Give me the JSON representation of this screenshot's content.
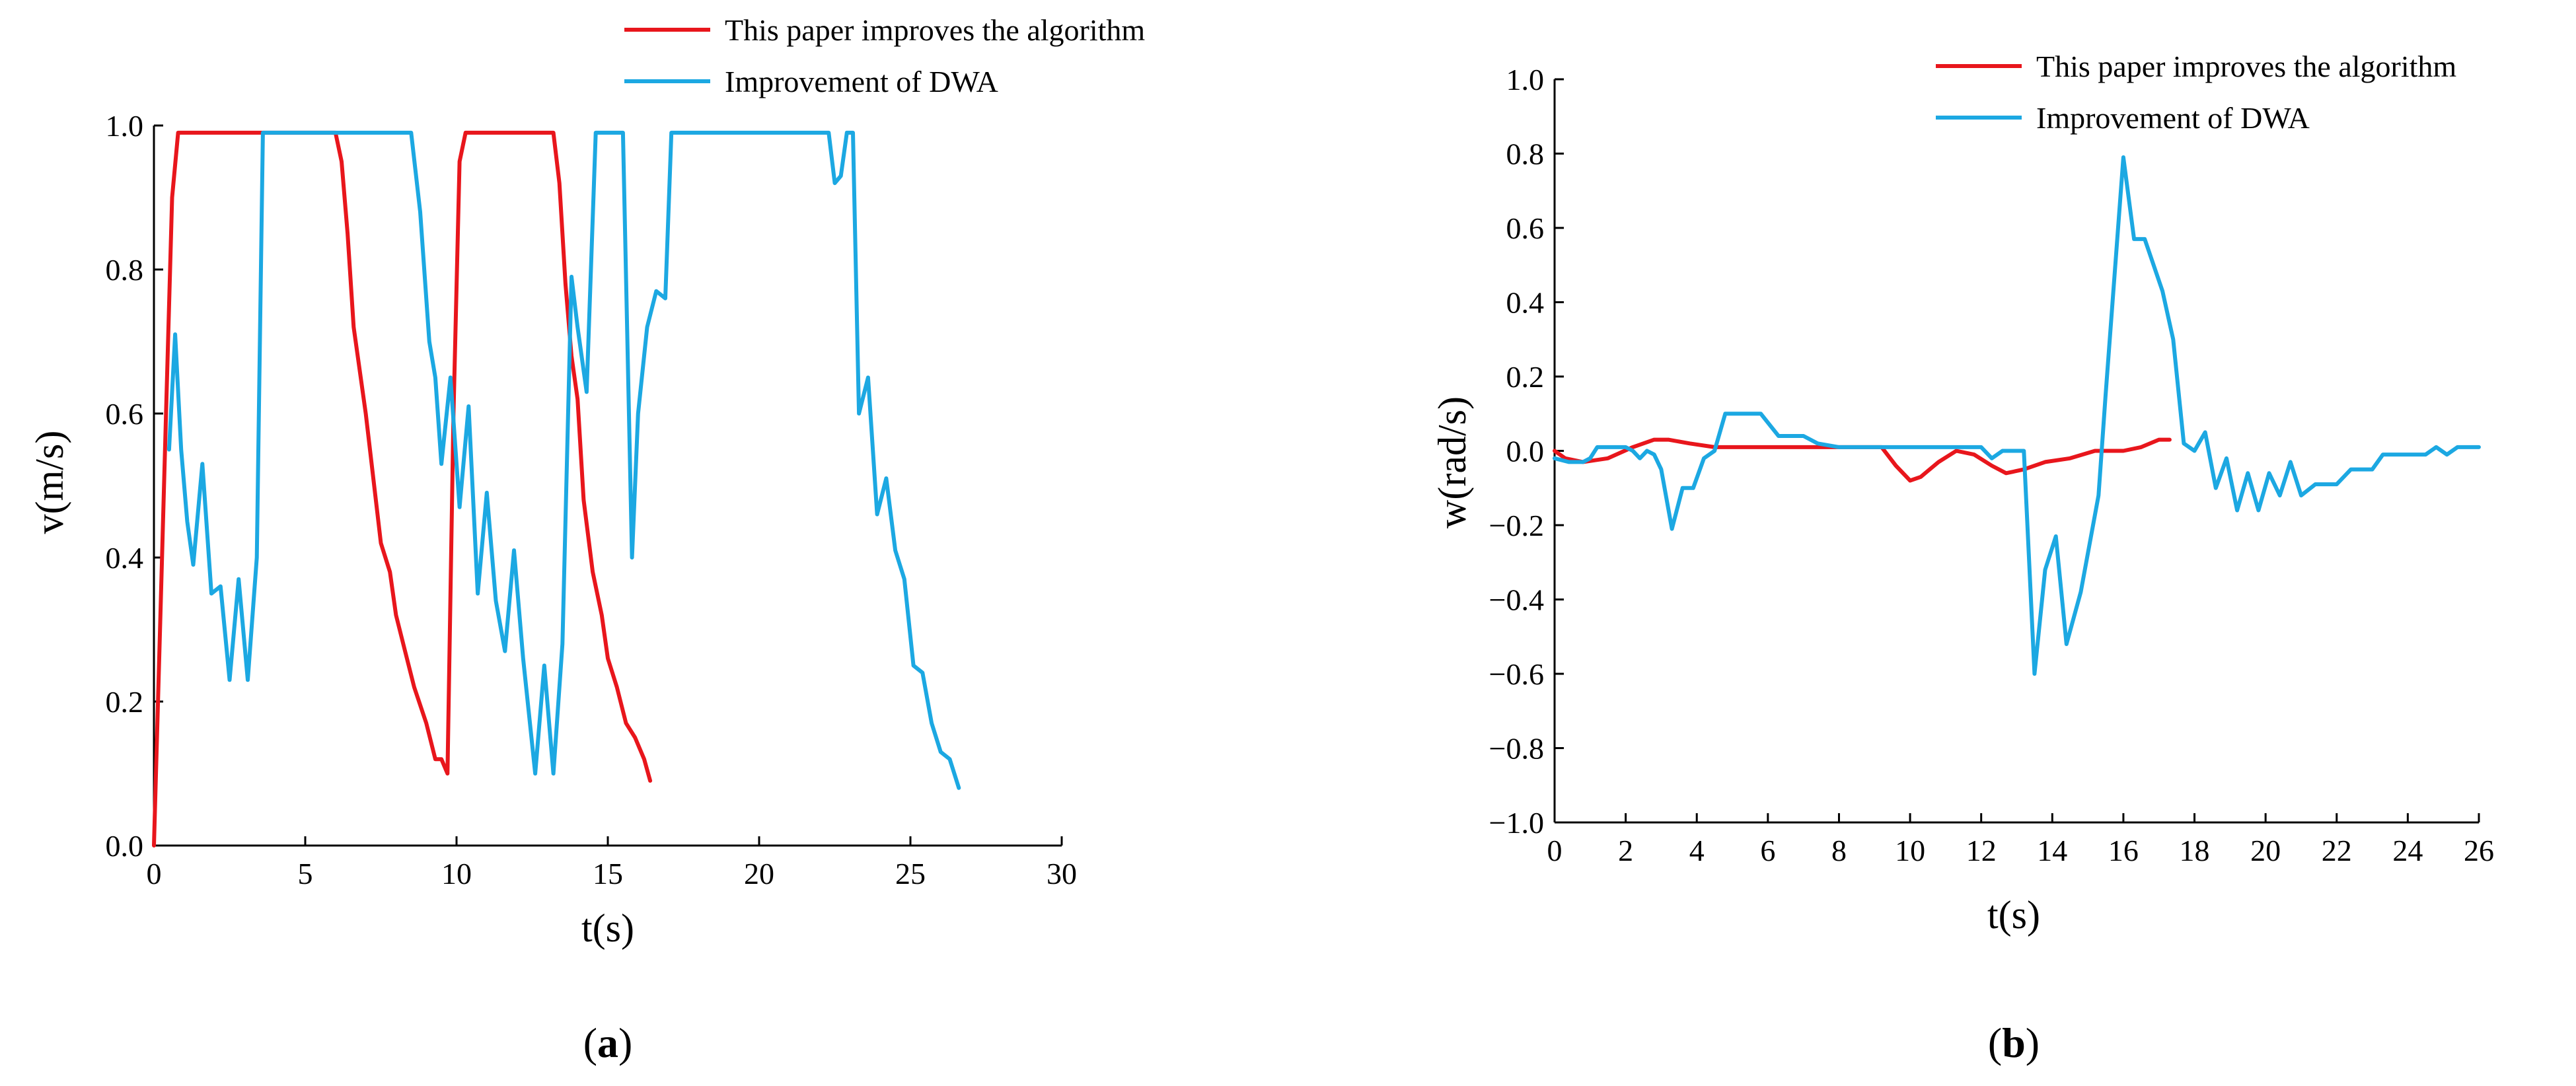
{
  "colors": {
    "algorithm": "#e8161c",
    "dwa": "#1ca8e2",
    "axis": "#000000"
  },
  "chart_data": [
    {
      "type": "line",
      "caption_pre": "(",
      "caption_bold": "a",
      "caption_post": ")",
      "title": "",
      "xlabel": "t(s)",
      "ylabel": "v(m/s)",
      "xlim": [
        0,
        30
      ],
      "ylim": [
        0.0,
        1.0
      ],
      "xticks": [
        0,
        5,
        10,
        15,
        20,
        25,
        30
      ],
      "yticks": [
        0.0,
        0.2,
        0.4,
        0.6,
        0.8,
        1.0
      ],
      "ytick_decimals": 1,
      "grid": false,
      "legend": "top-right",
      "series": [
        {
          "name": "This paper improves the algorithm",
          "color_key": "algorithm",
          "points": [
            [
              0,
              0
            ],
            [
              0.2,
              0.3
            ],
            [
              0.4,
              0.6
            ],
            [
              0.6,
              0.9
            ],
            [
              0.8,
              0.99
            ],
            [
              6.0,
              0.99
            ],
            [
              6.2,
              0.95
            ],
            [
              6.4,
              0.85
            ],
            [
              6.6,
              0.72
            ],
            [
              7.0,
              0.6
            ],
            [
              7.5,
              0.42
            ],
            [
              7.8,
              0.38
            ],
            [
              8.0,
              0.32
            ],
            [
              8.3,
              0.27
            ],
            [
              8.6,
              0.22
            ],
            [
              9.0,
              0.17
            ],
            [
              9.3,
              0.12
            ],
            [
              9.5,
              0.12
            ],
            [
              9.7,
              0.1
            ],
            [
              9.9,
              0.6
            ],
            [
              10.1,
              0.95
            ],
            [
              10.3,
              0.99
            ],
            [
              13.2,
              0.99
            ],
            [
              13.4,
              0.92
            ],
            [
              13.6,
              0.78
            ],
            [
              13.8,
              0.68
            ],
            [
              14.0,
              0.62
            ],
            [
              14.2,
              0.48
            ],
            [
              14.5,
              0.38
            ],
            [
              14.8,
              0.32
            ],
            [
              15.0,
              0.26
            ],
            [
              15.3,
              0.22
            ],
            [
              15.6,
              0.17
            ],
            [
              15.9,
              0.15
            ],
            [
              16.2,
              0.12
            ],
            [
              16.4,
              0.09
            ]
          ]
        },
        {
          "name": "Improvement of DWA",
          "color_key": "dwa",
          "points": [
            [
              0.5,
              0.55
            ],
            [
              0.7,
              0.71
            ],
            [
              0.9,
              0.55
            ],
            [
              1.1,
              0.45
            ],
            [
              1.3,
              0.39
            ],
            [
              1.6,
              0.53
            ],
            [
              1.9,
              0.35
            ],
            [
              2.2,
              0.36
            ],
            [
              2.5,
              0.23
            ],
            [
              2.8,
              0.37
            ],
            [
              3.1,
              0.23
            ],
            [
              3.4,
              0.4
            ],
            [
              3.6,
              0.99
            ],
            [
              8.5,
              0.99
            ],
            [
              8.8,
              0.88
            ],
            [
              9.1,
              0.7
            ],
            [
              9.3,
              0.65
            ],
            [
              9.5,
              0.53
            ],
            [
              9.8,
              0.65
            ],
            [
              10.1,
              0.47
            ],
            [
              10.4,
              0.61
            ],
            [
              10.7,
              0.35
            ],
            [
              11.0,
              0.49
            ],
            [
              11.3,
              0.34
            ],
            [
              11.6,
              0.27
            ],
            [
              11.9,
              0.41
            ],
            [
              12.2,
              0.26
            ],
            [
              12.6,
              0.1
            ],
            [
              12.9,
              0.25
            ],
            [
              13.2,
              0.1
            ],
            [
              13.5,
              0.28
            ],
            [
              13.8,
              0.79
            ],
            [
              14.0,
              0.72
            ],
            [
              14.3,
              0.63
            ],
            [
              14.6,
              0.99
            ],
            [
              15.5,
              0.99
            ],
            [
              15.8,
              0.4
            ],
            [
              16.0,
              0.6
            ],
            [
              16.3,
              0.72
            ],
            [
              16.6,
              0.77
            ],
            [
              16.9,
              0.76
            ],
            [
              17.1,
              0.99
            ],
            [
              22.3,
              0.99
            ],
            [
              22.5,
              0.92
            ],
            [
              22.7,
              0.93
            ],
            [
              22.9,
              0.99
            ],
            [
              23.1,
              0.99
            ],
            [
              23.3,
              0.6
            ],
            [
              23.6,
              0.65
            ],
            [
              23.9,
              0.46
            ],
            [
              24.2,
              0.51
            ],
            [
              24.5,
              0.41
            ],
            [
              24.8,
              0.37
            ],
            [
              25.1,
              0.25
            ],
            [
              25.4,
              0.24
            ],
            [
              25.7,
              0.17
            ],
            [
              26.0,
              0.13
            ],
            [
              26.3,
              0.12
            ],
            [
              26.6,
              0.08
            ]
          ]
        }
      ]
    },
    {
      "type": "line",
      "caption_pre": "(",
      "caption_bold": "b",
      "caption_post": ")",
      "title": "",
      "xlabel": "t(s)",
      "ylabel": "w(rad/s)",
      "xlim": [
        0,
        26
      ],
      "ylim": [
        -1.0,
        1.0
      ],
      "xticks": [
        0,
        2,
        4,
        6,
        8,
        10,
        12,
        14,
        16,
        18,
        20,
        22,
        24,
        26
      ],
      "yticks": [
        -1.0,
        -0.8,
        -0.6,
        -0.4,
        -0.2,
        0.0,
        0.2,
        0.4,
        0.6,
        0.8,
        1.0
      ],
      "ytick_decimals": 1,
      "grid": false,
      "legend": "top-right",
      "series": [
        {
          "name": "This paper improves the algorithm",
          "color_key": "algorithm",
          "points": [
            [
              0,
              0
            ],
            [
              0.3,
              -0.02
            ],
            [
              0.8,
              -0.03
            ],
            [
              1.5,
              -0.02
            ],
            [
              2.2,
              0.01
            ],
            [
              2.8,
              0.03
            ],
            [
              3.2,
              0.03
            ],
            [
              3.8,
              0.02
            ],
            [
              4.5,
              0.01
            ],
            [
              5.5,
              0.01
            ],
            [
              6.5,
              0.01
            ],
            [
              7.5,
              0.01
            ],
            [
              8.5,
              0.01
            ],
            [
              9.2,
              0.01
            ],
            [
              9.6,
              -0.04
            ],
            [
              10.0,
              -0.08
            ],
            [
              10.3,
              -0.07
            ],
            [
              10.8,
              -0.03
            ],
            [
              11.3,
              0.0
            ],
            [
              11.8,
              -0.01
            ],
            [
              12.3,
              -0.04
            ],
            [
              12.7,
              -0.06
            ],
            [
              13.2,
              -0.05
            ],
            [
              13.8,
              -0.03
            ],
            [
              14.5,
              -0.02
            ],
            [
              15.2,
              0.0
            ],
            [
              16.0,
              0.0
            ],
            [
              16.5,
              0.01
            ],
            [
              17.0,
              0.03
            ],
            [
              17.3,
              0.03
            ]
          ]
        },
        {
          "name": "Improvement of DWA",
          "color_key": "dwa",
          "points": [
            [
              0,
              -0.02
            ],
            [
              0.4,
              -0.03
            ],
            [
              0.8,
              -0.03
            ],
            [
              1.0,
              -0.02
            ],
            [
              1.2,
              0.01
            ],
            [
              2.0,
              0.01
            ],
            [
              2.2,
              0.0
            ],
            [
              2.4,
              -0.02
            ],
            [
              2.6,
              0.0
            ],
            [
              2.8,
              -0.01
            ],
            [
              3.0,
              -0.05
            ],
            [
              3.3,
              -0.21
            ],
            [
              3.6,
              -0.1
            ],
            [
              3.9,
              -0.1
            ],
            [
              4.2,
              -0.02
            ],
            [
              4.5,
              0.0
            ],
            [
              4.8,
              0.1
            ],
            [
              5.8,
              0.1
            ],
            [
              6.3,
              0.04
            ],
            [
              7.0,
              0.04
            ],
            [
              7.4,
              0.02
            ],
            [
              8.0,
              0.01
            ],
            [
              12.0,
              0.01
            ],
            [
              12.3,
              -0.02
            ],
            [
              12.6,
              0.0
            ],
            [
              13.2,
              0.0
            ],
            [
              13.5,
              -0.6
            ],
            [
              13.8,
              -0.32
            ],
            [
              14.1,
              -0.23
            ],
            [
              14.4,
              -0.52
            ],
            [
              14.8,
              -0.38
            ],
            [
              15.3,
              -0.12
            ],
            [
              15.5,
              0.15
            ],
            [
              16.0,
              0.79
            ],
            [
              16.3,
              0.57
            ],
            [
              16.6,
              0.57
            ],
            [
              17.1,
              0.43
            ],
            [
              17.4,
              0.3
            ],
            [
              17.7,
              0.02
            ],
            [
              18.0,
              0.0
            ],
            [
              18.3,
              0.05
            ],
            [
              18.6,
              -0.1
            ],
            [
              18.9,
              -0.02
            ],
            [
              19.2,
              -0.16
            ],
            [
              19.5,
              -0.06
            ],
            [
              19.8,
              -0.16
            ],
            [
              20.1,
              -0.06
            ],
            [
              20.4,
              -0.12
            ],
            [
              20.7,
              -0.03
            ],
            [
              21.0,
              -0.12
            ],
            [
              21.4,
              -0.09
            ],
            [
              22.0,
              -0.09
            ],
            [
              22.4,
              -0.05
            ],
            [
              23.0,
              -0.05
            ],
            [
              23.3,
              -0.01
            ],
            [
              24.5,
              -0.01
            ],
            [
              24.8,
              0.01
            ],
            [
              25.1,
              -0.01
            ],
            [
              25.4,
              0.01
            ],
            [
              26.0,
              0.01
            ]
          ]
        }
      ]
    }
  ]
}
